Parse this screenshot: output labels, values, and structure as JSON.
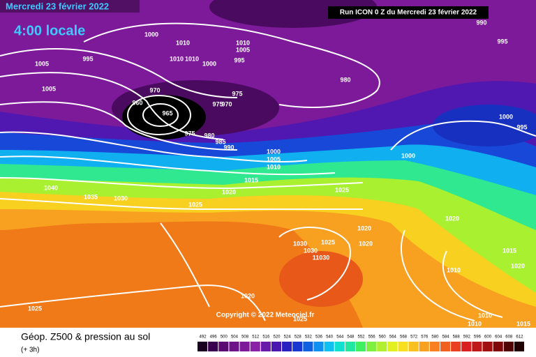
{
  "header": {
    "date": "Mercredi 23 février 2022",
    "time": "4:00 locale",
    "run": "Run ICON 0 Z du Mercredi 23 février 2022"
  },
  "copyright": "Copyright © 2022 Meteociel.fr",
  "footer": {
    "title": "Géop. Z500 & pression au sol",
    "step": "(+ 3h)"
  },
  "colorscale": {
    "labels": [
      492,
      496,
      500,
      504,
      508,
      512,
      516,
      520,
      524,
      528,
      532,
      536,
      540,
      544,
      548,
      552,
      556,
      560,
      564,
      568,
      572,
      576,
      580,
      584,
      588,
      592,
      596,
      600,
      604,
      608,
      612
    ],
    "colors": [
      "#1a0020",
      "#3a0050",
      "#5a0a70",
      "#6e1488",
      "#7d1a99",
      "#8a22a8",
      "#6a1aa8",
      "#4a18b0",
      "#2a20c0",
      "#1838d0",
      "#1060e0",
      "#1090f0",
      "#10c0f0",
      "#10e0d0",
      "#20e8a0",
      "#40f060",
      "#80f040",
      "#b0f030",
      "#e0f020",
      "#f8e020",
      "#f8c020",
      "#f8a020",
      "#f88020",
      "#f06020",
      "#e84020",
      "#d82020",
      "#c01818",
      "#a01010",
      "#800808",
      "#500404",
      "#200000"
    ]
  },
  "pressure_labels": [
    1000,
    1010,
    1010,
    1010,
    1000,
    1005,
    995,
    1005,
    1010,
    1005,
    995,
    970,
    960,
    965,
    975,
    975,
    970,
    980,
    975,
    980,
    985,
    990,
    1000,
    1005,
    1010,
    1000,
    1015,
    1020,
    1025,
    1040,
    1035,
    1030,
    1025,
    1020,
    1020,
    1020,
    1030,
    1025,
    1030,
    11030,
    1015,
    1010,
    1020,
    1025,
    1025,
    1010,
    1010,
    1015,
    1000,
    995,
    990,
    995,
    1020
  ]
}
